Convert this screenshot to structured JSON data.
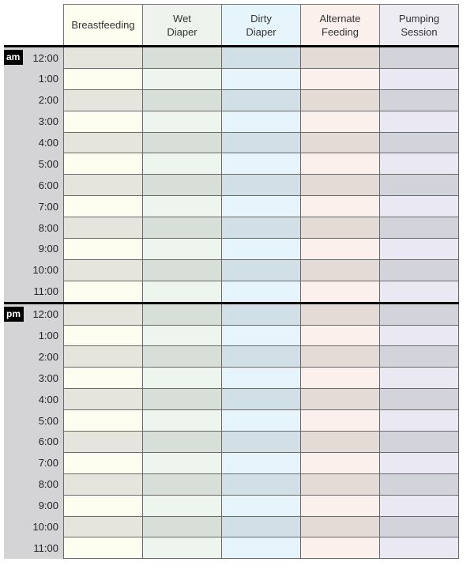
{
  "columns": [
    {
      "label_line1": "Breastfeeding",
      "label_line2": "",
      "header_color": "#fdfdf0",
      "light_color": "#fdfdf0",
      "dark_color": "#e5e5dd"
    },
    {
      "label_line1": "Wet",
      "label_line2": "Diaper",
      "header_color": "#eef3ee",
      "light_color": "#eef4ee",
      "dark_color": "#d8dfd8"
    },
    {
      "label_line1": "Dirty",
      "label_line2": "Diaper",
      "header_color": "#e6f5fc",
      "light_color": "#e6f5fc",
      "dark_color": "#d1e0e6"
    },
    {
      "label_line1": "Alternate",
      "label_line2": "Feeding",
      "header_color": "#fcf0ec",
      "light_color": "#fcf0ed",
      "dark_color": "#e5dbd6"
    },
    {
      "label_line1": "Pumping",
      "label_line2": "Session",
      "header_color": "#ececf2",
      "light_color": "#e9e8f3",
      "dark_color": "#d3d3dc"
    }
  ],
  "periods": [
    {
      "label": "am",
      "times": [
        "12:00",
        "1:00",
        "2:00",
        "3:00",
        "4:00",
        "5:00",
        "6:00",
        "7:00",
        "8:00",
        "9:00",
        "10:00",
        "11:00"
      ]
    },
    {
      "label": "pm",
      "times": [
        "12:00",
        "1:00",
        "2:00",
        "3:00",
        "4:00",
        "5:00",
        "6:00",
        "7:00",
        "8:00",
        "9:00",
        "10:00",
        "11:00"
      ]
    }
  ]
}
